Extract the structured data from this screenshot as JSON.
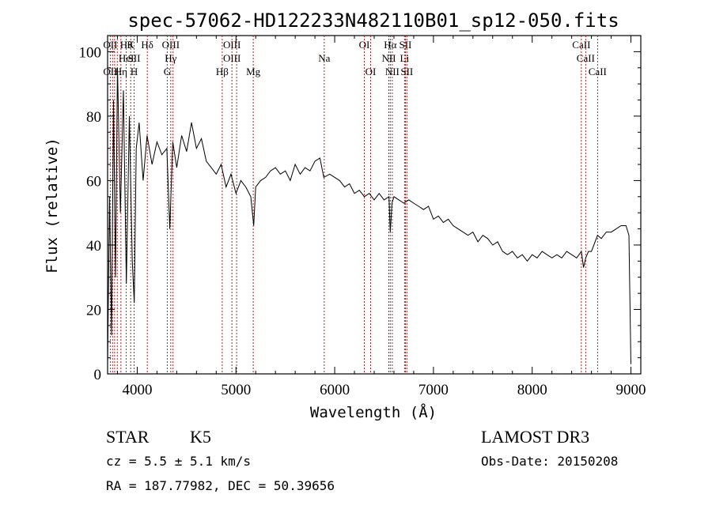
{
  "chart_data": {
    "type": "line",
    "title": "spec-57062-HD122233N482110B01_sp12-050.fits",
    "xlabel": "Wavelength (Å)",
    "ylabel": "Flux (relative)",
    "xlim": [
      3700,
      9100
    ],
    "ylim": [
      0,
      105
    ],
    "x_ticks": [
      4000,
      5000,
      6000,
      7000,
      8000,
      9000
    ],
    "x_tick_labels": [
      "4000",
      "5000",
      "6000",
      "7000",
      "8000",
      "9000"
    ],
    "y_ticks": [
      0,
      20,
      40,
      60,
      80,
      100
    ],
    "y_tick_labels": [
      "0",
      "20",
      "40",
      "60",
      "80",
      "100"
    ],
    "grid": false,
    "line_color": "#000000",
    "marker_color": "#c00000",
    "series": [
      {
        "name": "flux",
        "x": [
          3700,
          3720,
          3740,
          3760,
          3780,
          3800,
          3830,
          3860,
          3890,
          3920,
          3950,
          3970,
          3990,
          4020,
          4060,
          4100,
          4150,
          4200,
          4250,
          4300,
          4330,
          4360,
          4400,
          4450,
          4500,
          4550,
          4600,
          4650,
          4700,
          4750,
          4800,
          4850,
          4900,
          4950,
          5000,
          5050,
          5100,
          5150,
          5180,
          5200,
          5250,
          5300,
          5350,
          5400,
          5450,
          5500,
          5550,
          5600,
          5650,
          5700,
          5750,
          5800,
          5850,
          5890,
          5950,
          6000,
          6050,
          6100,
          6150,
          6200,
          6250,
          6300,
          6350,
          6400,
          6450,
          6500,
          6550,
          6563,
          6580,
          6600,
          6650,
          6700,
          6750,
          6800,
          6850,
          6900,
          6950,
          7000,
          7050,
          7100,
          7150,
          7200,
          7250,
          7300,
          7350,
          7400,
          7450,
          7500,
          7550,
          7600,
          7650,
          7700,
          7750,
          7800,
          7850,
          7900,
          7950,
          8000,
          8050,
          8100,
          8150,
          8200,
          8250,
          8300,
          8350,
          8400,
          8450,
          8498,
          8520,
          8542,
          8570,
          8600,
          8662,
          8700,
          8750,
          8800,
          8850,
          8900,
          8950,
          8980,
          9000
        ],
        "y": [
          3,
          55,
          12,
          85,
          30,
          95,
          50,
          88,
          28,
          80,
          35,
          22,
          70,
          78,
          60,
          74,
          65,
          72,
          68,
          70,
          45,
          72,
          64,
          74,
          69,
          78,
          70,
          73,
          66,
          64,
          62,
          65,
          58,
          62,
          56,
          60,
          58,
          55,
          46,
          58,
          60,
          61,
          63,
          64,
          62,
          63,
          60,
          65,
          62,
          64,
          63,
          66,
          67,
          61,
          62,
          61,
          60,
          58,
          59,
          56,
          57,
          55,
          56,
          54,
          56,
          54,
          55,
          44,
          53,
          55,
          54,
          53,
          54,
          53,
          52,
          51,
          52,
          48,
          49,
          47,
          48,
          46,
          45,
          44,
          43,
          44,
          41,
          43,
          42,
          40,
          41,
          38,
          37,
          38,
          36,
          37,
          35,
          37,
          36,
          38,
          37,
          36,
          37,
          36,
          38,
          37,
          36,
          38,
          33,
          36,
          38,
          38,
          43,
          42,
          44,
          44,
          45,
          46,
          46,
          43,
          3
        ]
      }
    ],
    "line_markers": [
      {
        "wavelength": 3727,
        "top": "OII",
        "mid": "",
        "low": "OII"
      },
      {
        "wavelength": 3750,
        "top": "",
        "mid": "",
        "low": ""
      },
      {
        "wavelength": 3771,
        "top": "",
        "mid": "",
        "low": ""
      },
      {
        "wavelength": 3798,
        "top": "",
        "mid": "",
        "low": ""
      },
      {
        "wavelength": 3835,
        "top": "",
        "mid": "",
        "low": "Hη"
      },
      {
        "wavelength": 3889,
        "top": "Hθ",
        "mid": "HeI",
        "low": ""
      },
      {
        "wavelength": 3934,
        "top": "K",
        "mid": "",
        "low": ""
      },
      {
        "wavelength": 3969,
        "top": "",
        "mid": "SII",
        "low": "H"
      },
      {
        "wavelength": 4102,
        "top": "Hδ",
        "mid": "",
        "low": ""
      },
      {
        "wavelength": 4304,
        "top": "",
        "mid": "",
        "low": "G"
      },
      {
        "wavelength": 4340,
        "top": "OIII",
        "mid": "Hγ",
        "low": ""
      },
      {
        "wavelength": 4363,
        "top": "",
        "mid": "",
        "low": ""
      },
      {
        "wavelength": 4861,
        "top": "",
        "mid": "",
        "low": "Hβ"
      },
      {
        "wavelength": 4959,
        "top": "OIII",
        "mid": "OIII",
        "low": ""
      },
      {
        "wavelength": 5007,
        "top": "",
        "mid": "",
        "low": ""
      },
      {
        "wavelength": 5175,
        "top": "",
        "mid": "",
        "low": "Mg"
      },
      {
        "wavelength": 5894,
        "top": "",
        "mid": "Na",
        "low": ""
      },
      {
        "wavelength": 6300,
        "top": "OI",
        "mid": "",
        "low": ""
      },
      {
        "wavelength": 6364,
        "top": "",
        "mid": "",
        "low": "OI"
      },
      {
        "wavelength": 6548,
        "top": "",
        "mid": "NII",
        "low": ""
      },
      {
        "wavelength": 6563,
        "top": "Hα",
        "mid": "",
        "low": ""
      },
      {
        "wavelength": 6583,
        "top": "",
        "mid": "",
        "low": "NII"
      },
      {
        "wavelength": 6707,
        "top": "",
        "mid": "Li",
        "low": ""
      },
      {
        "wavelength": 6716,
        "top": "SII",
        "mid": "",
        "low": ""
      },
      {
        "wavelength": 6731,
        "top": "",
        "mid": "",
        "low": "SII"
      },
      {
        "wavelength": 8498,
        "top": "CaII",
        "mid": "",
        "low": ""
      },
      {
        "wavelength": 8542,
        "top": "",
        "mid": "CaII",
        "low": ""
      },
      {
        "wavelength": 8662,
        "top": "",
        "mid": "",
        "low": "CaII"
      }
    ]
  },
  "info": {
    "object_type": "STAR",
    "subclass": "K5",
    "survey": "LAMOST DR3",
    "redshift": "cz = 5.5 ± 5.1 km/s",
    "obs_date": "Obs-Date: 20150208",
    "coords": "RA = 187.77982, DEC =  50.39656"
  }
}
